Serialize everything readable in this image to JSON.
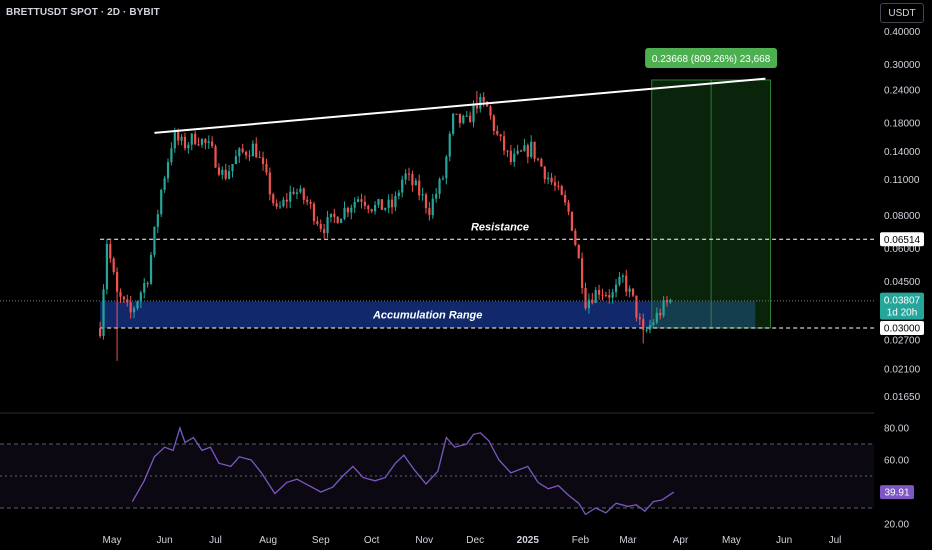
{
  "header": {
    "symbol": "BRETTUSDT SPOT · 2D · BYBIT",
    "currency": "USDT"
  },
  "colors": {
    "up": "#26a69a",
    "down": "#ef5350",
    "accumulation": "#2962ff",
    "target_zone": "#1b5e20",
    "rsi_line": "#7e57c2",
    "label_green": "#4caf50"
  },
  "chart_data": [
    {
      "type": "candlestick",
      "title": "BRETTUSDT SPOT · 2D · BYBIT",
      "y_scale": "log",
      "ylim": [
        0.0135,
        0.44
      ],
      "y_ticks": [
        {
          "v": 0.4,
          "label": "0.40000"
        },
        {
          "v": 0.3,
          "label": "0.30000"
        },
        {
          "v": 0.24,
          "label": "0.24000"
        },
        {
          "v": 0.18,
          "label": "0.18000"
        },
        {
          "v": 0.14,
          "label": "0.14000"
        },
        {
          "v": 0.11,
          "label": "0.11000"
        },
        {
          "v": 0.08,
          "label": "0.08000"
        },
        {
          "v": 0.06,
          "label": "0.06000"
        },
        {
          "v": 0.045,
          "label": "0.04500"
        },
        {
          "v": 0.027,
          "label": "0.02700"
        },
        {
          "v": 0.021,
          "label": "0.02100"
        },
        {
          "v": 0.0165,
          "label": "0.01650"
        }
      ],
      "x_axis": {
        "start": "2024-04-24",
        "end": "2025-07-31",
        "ticks": [
          {
            "date": "2024-05-01",
            "label": "May",
            "bold": false
          },
          {
            "date": "2024-06-01",
            "label": "Jun",
            "bold": false
          },
          {
            "date": "2024-07-01",
            "label": "Jul",
            "bold": false
          },
          {
            "date": "2024-08-01",
            "label": "Aug",
            "bold": false
          },
          {
            "date": "2024-09-01",
            "label": "Sep",
            "bold": false
          },
          {
            "date": "2024-10-01",
            "label": "Oct",
            "bold": false
          },
          {
            "date": "2024-11-01",
            "label": "Nov",
            "bold": false
          },
          {
            "date": "2024-12-01",
            "label": "Dec",
            "bold": false
          },
          {
            "date": "2025-01-01",
            "label": "2025",
            "bold": true
          },
          {
            "date": "2025-02-01",
            "label": "Feb",
            "bold": false
          },
          {
            "date": "2025-03-01",
            "label": "Mar",
            "bold": false
          },
          {
            "date": "2025-04-01",
            "label": "Apr",
            "bold": false
          },
          {
            "date": "2025-05-01",
            "label": "May",
            "bold": false
          },
          {
            "date": "2025-06-01",
            "label": "Jun",
            "bold": false
          },
          {
            "date": "2025-07-01",
            "label": "Jul",
            "bold": false
          }
        ]
      },
      "price_path": [
        {
          "date": "2024-04-24",
          "close": 0.03
        },
        {
          "date": "2024-04-28",
          "close": 0.064
        },
        {
          "date": "2024-05-04",
          "close": 0.04
        },
        {
          "date": "2024-05-12",
          "close": 0.034
        },
        {
          "date": "2024-05-22",
          "close": 0.047
        },
        {
          "date": "2024-05-30",
          "close": 0.1
        },
        {
          "date": "2024-06-06",
          "close": 0.16
        },
        {
          "date": "2024-06-12",
          "close": 0.148
        },
        {
          "date": "2024-06-20",
          "close": 0.16
        },
        {
          "date": "2024-06-28",
          "close": 0.143
        },
        {
          "date": "2024-07-06",
          "close": 0.112
        },
        {
          "date": "2024-07-14",
          "close": 0.135
        },
        {
          "date": "2024-07-24",
          "close": 0.147
        },
        {
          "date": "2024-08-01",
          "close": 0.105
        },
        {
          "date": "2024-08-06",
          "close": 0.082
        },
        {
          "date": "2024-08-16",
          "close": 0.101
        },
        {
          "date": "2024-08-24",
          "close": 0.09
        },
        {
          "date": "2024-09-02",
          "close": 0.072
        },
        {
          "date": "2024-09-10",
          "close": 0.079
        },
        {
          "date": "2024-09-24",
          "close": 0.095
        },
        {
          "date": "2024-10-02",
          "close": 0.086
        },
        {
          "date": "2024-10-14",
          "close": 0.087
        },
        {
          "date": "2024-10-20",
          "close": 0.115
        },
        {
          "date": "2024-10-28",
          "close": 0.1
        },
        {
          "date": "2024-11-04",
          "close": 0.085
        },
        {
          "date": "2024-11-12",
          "close": 0.112
        },
        {
          "date": "2024-11-18",
          "close": 0.185
        },
        {
          "date": "2024-11-26",
          "close": 0.18
        },
        {
          "date": "2024-12-02",
          "close": 0.215
        },
        {
          "date": "2024-12-08",
          "close": 0.205
        },
        {
          "date": "2024-12-14",
          "close": 0.16
        },
        {
          "date": "2024-12-22",
          "close": 0.128
        },
        {
          "date": "2025-01-03",
          "close": 0.145
        },
        {
          "date": "2025-01-10",
          "close": 0.12
        },
        {
          "date": "2025-01-18",
          "close": 0.1
        },
        {
          "date": "2025-01-26",
          "close": 0.08
        },
        {
          "date": "2025-02-01",
          "close": 0.05
        },
        {
          "date": "2025-02-04",
          "close": 0.038
        },
        {
          "date": "2025-02-12",
          "close": 0.042
        },
        {
          "date": "2025-02-20",
          "close": 0.04
        },
        {
          "date": "2025-02-26",
          "close": 0.046
        },
        {
          "date": "2025-03-04",
          "close": 0.038
        },
        {
          "date": "2025-03-10",
          "close": 0.028
        },
        {
          "date": "2025-03-16",
          "close": 0.032
        },
        {
          "date": "2025-03-22",
          "close": 0.036
        },
        {
          "date": "2025-03-26",
          "close": 0.038
        }
      ],
      "wicks_extreme": [
        {
          "date": "2024-05-04",
          "low": 0.0225
        },
        {
          "date": "2024-06-06",
          "high": 0.185
        },
        {
          "date": "2024-12-02",
          "high": 0.238
        },
        {
          "date": "2025-03-10",
          "low": 0.0262
        }
      ],
      "annotations": {
        "trendline": {
          "from": {
            "date": "2024-05-26",
            "price": 0.165
          },
          "to": {
            "date": "2025-05-21",
            "price": 0.265
          }
        },
        "resistance": {
          "price": 0.0651,
          "from": "2024-04-24",
          "label": "Resistance"
        },
        "support": {
          "price": 0.03,
          "from": "2024-04-24"
        },
        "accumulation_range": {
          "from": "2024-04-24",
          "to": "2025-05-15",
          "low": 0.03,
          "high": 0.0378,
          "label": "Accumulation Range"
        },
        "target": {
          "from": "2025-03-15",
          "to": "2025-05-24",
          "low": 0.03,
          "high": 0.262,
          "label": "0.23668 (809.26%) 23,668"
        }
      },
      "price_badges": [
        {
          "label": "0.06514",
          "price": 0.0651,
          "style": "white"
        },
        {
          "label": "0.03807",
          "sub": "1d 20h",
          "price": 0.0381,
          "style": "green"
        },
        {
          "label": "0.03000",
          "price": 0.03,
          "style": "white"
        }
      ]
    },
    {
      "type": "line",
      "title": "",
      "ylim": [
        20,
        85
      ],
      "y_ticks": [
        {
          "v": 80,
          "label": "80.00"
        },
        {
          "v": 60,
          "label": "60.00"
        },
        {
          "v": 20,
          "label": "20.00"
        }
      ],
      "bands": {
        "upper": 70,
        "mid": 50,
        "lower": 30
      },
      "series": [
        {
          "name": "",
          "points": [
            {
              "date": "2024-05-13",
              "value": 34
            },
            {
              "date": "2024-05-20",
              "value": 47
            },
            {
              "date": "2024-05-26",
              "value": 62
            },
            {
              "date": "2024-06-01",
              "value": 68
            },
            {
              "date": "2024-06-06",
              "value": 66
            },
            {
              "date": "2024-06-10",
              "value": 80
            },
            {
              "date": "2024-06-13",
              "value": 71
            },
            {
              "date": "2024-06-18",
              "value": 74
            },
            {
              "date": "2024-06-23",
              "value": 66
            },
            {
              "date": "2024-06-28",
              "value": 68
            },
            {
              "date": "2024-07-03",
              "value": 58
            },
            {
              "date": "2024-07-10",
              "value": 56
            },
            {
              "date": "2024-07-15",
              "value": 62
            },
            {
              "date": "2024-07-22",
              "value": 60
            },
            {
              "date": "2024-07-28",
              "value": 52
            },
            {
              "date": "2024-08-05",
              "value": 39
            },
            {
              "date": "2024-08-12",
              "value": 46
            },
            {
              "date": "2024-08-18",
              "value": 48
            },
            {
              "date": "2024-08-25",
              "value": 44
            },
            {
              "date": "2024-09-01",
              "value": 40
            },
            {
              "date": "2024-09-08",
              "value": 43
            },
            {
              "date": "2024-09-14",
              "value": 50
            },
            {
              "date": "2024-09-20",
              "value": 56
            },
            {
              "date": "2024-09-26",
              "value": 49
            },
            {
              "date": "2024-10-03",
              "value": 47
            },
            {
              "date": "2024-10-09",
              "value": 49
            },
            {
              "date": "2024-10-15",
              "value": 58
            },
            {
              "date": "2024-10-20",
              "value": 63
            },
            {
              "date": "2024-10-26",
              "value": 54
            },
            {
              "date": "2024-11-02",
              "value": 45
            },
            {
              "date": "2024-11-09",
              "value": 53
            },
            {
              "date": "2024-11-14",
              "value": 74
            },
            {
              "date": "2024-11-19",
              "value": 68
            },
            {
              "date": "2024-11-26",
              "value": 70
            },
            {
              "date": "2024-11-30",
              "value": 76
            },
            {
              "date": "2024-12-04",
              "value": 77
            },
            {
              "date": "2024-12-09",
              "value": 72
            },
            {
              "date": "2024-12-15",
              "value": 60
            },
            {
              "date": "2024-12-22",
              "value": 52
            },
            {
              "date": "2025-01-01",
              "value": 56
            },
            {
              "date": "2025-01-07",
              "value": 46
            },
            {
              "date": "2025-01-13",
              "value": 42
            },
            {
              "date": "2025-01-19",
              "value": 44
            },
            {
              "date": "2025-01-25",
              "value": 38
            },
            {
              "date": "2025-01-31",
              "value": 33
            },
            {
              "date": "2025-02-04",
              "value": 26
            },
            {
              "date": "2025-02-10",
              "value": 30
            },
            {
              "date": "2025-02-16",
              "value": 27
            },
            {
              "date": "2025-02-22",
              "value": 33
            },
            {
              "date": "2025-03-01",
              "value": 31
            },
            {
              "date": "2025-03-06",
              "value": 32
            },
            {
              "date": "2025-03-11",
              "value": 28
            },
            {
              "date": "2025-03-16",
              "value": 34
            },
            {
              "date": "2025-03-21",
              "value": 35
            },
            {
              "date": "2025-03-28",
              "value": 39.91
            }
          ]
        }
      ],
      "last_value_label": "39.91"
    }
  ]
}
